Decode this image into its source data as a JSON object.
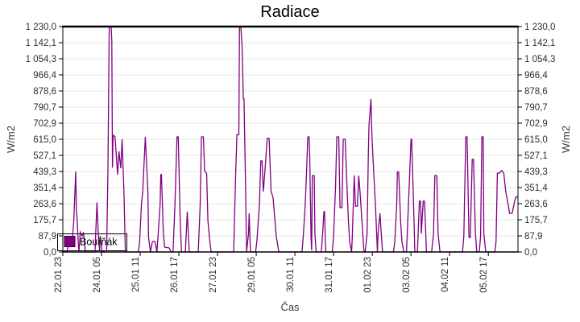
{
  "chart_data": {
    "type": "line",
    "title": "Radiace",
    "xlabel": "Čas",
    "ylabel": "W/m2",
    "ylim": [
      0,
      1230
    ],
    "x_total_hours": 353,
    "grid": "horizontal",
    "grid_color": "#e7e7e7",
    "axis_color": "#000000",
    "background": "#ffffff",
    "yticks": {
      "values": [
        0,
        87.9,
        175.7,
        263.6,
        351.4,
        439.3,
        527.1,
        615.0,
        702.9,
        790.7,
        878.6,
        966.4,
        1054.3,
        1142.1,
        1230.0
      ],
      "labels": [
        "0,0",
        "87,9",
        "175,7",
        "263,6",
        "351,4",
        "439,3",
        "527,1",
        "615,0",
        "702,9",
        "790,7",
        "878,6",
        "966,4",
        "1 054,3",
        "1 142,1",
        "1 230,0"
      ]
    },
    "xticks": {
      "hours": [
        0,
        30,
        60,
        90,
        120,
        150,
        180,
        210,
        240,
        270,
        300,
        330
      ],
      "labels": [
        "22.01 23",
        "24.01 05",
        "25.01 11",
        "26.01 17",
        "27.01 23",
        "29.01 05",
        "30.01 11",
        "31.01 17",
        "01.02 23",
        "03.02 05",
        "04.02 11",
        "05.02 17"
      ]
    },
    "legend": {
      "label": "Bouřňák",
      "marker_color": "#800080",
      "position": "bottom-left"
    },
    "series": [
      {
        "name": "Bouřňák",
        "color": "#800080",
        "points": [
          [
            0,
            5
          ],
          [
            3.5,
            5
          ],
          [
            4.5,
            79
          ],
          [
            5.5,
            44
          ],
          [
            6,
            40
          ],
          [
            7.5,
            79
          ],
          [
            8.5,
            170
          ],
          [
            10,
            439
          ],
          [
            10.5,
            230
          ],
          [
            11,
            189
          ],
          [
            12,
            44
          ],
          [
            12.5,
            0
          ],
          [
            13.5,
            108
          ],
          [
            15,
            87
          ],
          [
            16,
            108
          ],
          [
            17.5,
            0
          ],
          [
            25,
            0
          ],
          [
            25.5,
            100
          ],
          [
            26.5,
            270
          ],
          [
            27.5,
            100
          ],
          [
            28.5,
            9
          ],
          [
            29,
            87
          ],
          [
            30.5,
            0
          ],
          [
            34,
            9
          ],
          [
            35,
            444
          ],
          [
            36,
            1230
          ],
          [
            37.5,
            1230
          ],
          [
            38,
            1150
          ],
          [
            38.5,
            460
          ],
          [
            39,
            637
          ],
          [
            40.5,
            628
          ],
          [
            42.5,
            422
          ],
          [
            43.5,
            549
          ],
          [
            45,
            457
          ],
          [
            46,
            615
          ],
          [
            47.5,
            308
          ],
          [
            48.5,
            0
          ],
          [
            58.5,
            0
          ],
          [
            59.5,
            44
          ],
          [
            61,
            260
          ],
          [
            62,
            330
          ],
          [
            64,
            628
          ],
          [
            66,
            330
          ],
          [
            66.5,
            79
          ],
          [
            68,
            0
          ],
          [
            69.5,
            57
          ],
          [
            71.5,
            57
          ],
          [
            73,
            0
          ],
          [
            74,
            100
          ],
          [
            75.5,
            260
          ],
          [
            76,
            422
          ],
          [
            76.5,
            422
          ],
          [
            78,
            100
          ],
          [
            79,
            26
          ],
          [
            82.5,
            22
          ],
          [
            84,
            0
          ],
          [
            85.5,
            0
          ],
          [
            87,
            260
          ],
          [
            88.5,
            628
          ],
          [
            89.5,
            628
          ],
          [
            91,
            170
          ],
          [
            92,
            0
          ],
          [
            95,
            0
          ],
          [
            96.5,
            220
          ],
          [
            98,
            0
          ],
          [
            105,
            0
          ],
          [
            106.5,
            260
          ],
          [
            107.5,
            628
          ],
          [
            109,
            628
          ],
          [
            110,
            440
          ],
          [
            111.5,
            430
          ],
          [
            112.5,
            170
          ],
          [
            114,
            57
          ],
          [
            115,
            0
          ],
          [
            132.5,
            0
          ],
          [
            134,
            420
          ],
          [
            135,
            640
          ],
          [
            136.5,
            640
          ],
          [
            137,
            1230
          ],
          [
            138,
            1230
          ],
          [
            139,
            1124
          ],
          [
            140,
            835
          ],
          [
            140.5,
            835
          ],
          [
            141.5,
            444
          ],
          [
            142.5,
            0
          ],
          [
            144,
            100
          ],
          [
            144.5,
            211
          ],
          [
            145.5,
            0
          ],
          [
            149.5,
            0
          ],
          [
            150.5,
            60
          ],
          [
            152.5,
            260
          ],
          [
            153.5,
            497
          ],
          [
            154.5,
            497
          ],
          [
            155.5,
            330
          ],
          [
            157,
            466
          ],
          [
            158.5,
            620
          ],
          [
            160,
            620
          ],
          [
            161.5,
            330
          ],
          [
            163,
            299
          ],
          [
            165.5,
            87
          ],
          [
            167.5,
            0
          ],
          [
            185.5,
            0
          ],
          [
            186.5,
            87
          ],
          [
            188,
            260
          ],
          [
            189,
            430
          ],
          [
            190,
            628
          ],
          [
            191,
            628
          ],
          [
            191.5,
            520
          ],
          [
            192.5,
            79
          ],
          [
            193,
            9
          ],
          [
            193.5,
            417
          ],
          [
            195,
            417
          ],
          [
            195.5,
            100
          ],
          [
            196.5,
            0
          ],
          [
            200.5,
            0
          ],
          [
            201.5,
            100
          ],
          [
            202.5,
            220
          ],
          [
            203,
            220
          ],
          [
            203.5,
            79
          ],
          [
            204,
            0
          ],
          [
            209,
            0
          ],
          [
            210,
            87
          ],
          [
            211.5,
            350
          ],
          [
            212.5,
            628
          ],
          [
            214,
            628
          ],
          [
            215,
            242
          ],
          [
            216.5,
            242
          ],
          [
            217.5,
            615
          ],
          [
            219,
            615
          ],
          [
            220,
            430
          ],
          [
            221.5,
            170
          ],
          [
            222.5,
            57
          ],
          [
            224,
            0
          ],
          [
            224.5,
            79
          ],
          [
            226,
            417
          ],
          [
            227,
            250
          ],
          [
            228.5,
            250
          ],
          [
            229.5,
            417
          ],
          [
            230.5,
            330
          ],
          [
            232,
            170
          ],
          [
            233.5,
            9
          ],
          [
            234.5,
            0
          ],
          [
            236,
            100
          ],
          [
            237,
            549
          ],
          [
            237.5,
            694
          ],
          [
            239,
            835
          ],
          [
            239.5,
            694
          ],
          [
            240,
            590
          ],
          [
            241.5,
            387
          ],
          [
            242.5,
            255
          ],
          [
            244,
            0
          ],
          [
            244.5,
            100
          ],
          [
            246,
            211
          ],
          [
            247,
            100
          ],
          [
            248,
            0
          ],
          [
            256.5,
            0
          ],
          [
            257.5,
            57
          ],
          [
            259,
            260
          ],
          [
            259.5,
            437
          ],
          [
            260.5,
            437
          ],
          [
            262,
            170
          ],
          [
            263,
            57
          ],
          [
            264.5,
            0
          ],
          [
            266.5,
            0
          ],
          [
            267.5,
            170
          ],
          [
            269,
            430
          ],
          [
            270,
            615
          ],
          [
            270.5,
            615
          ],
          [
            272,
            260
          ],
          [
            273,
            0
          ],
          [
            275,
            0
          ],
          [
            276.5,
            277
          ],
          [
            277.5,
            277
          ],
          [
            278,
            100
          ],
          [
            279.5,
            277
          ],
          [
            280.5,
            277
          ],
          [
            282,
            0
          ],
          [
            286,
            0
          ],
          [
            287.5,
            100
          ],
          [
            288.5,
            417
          ],
          [
            290,
            417
          ],
          [
            291,
            100
          ],
          [
            292.5,
            0
          ],
          [
            310,
            0
          ],
          [
            311,
            87
          ],
          [
            312.5,
            628
          ],
          [
            313.5,
            628
          ],
          [
            315,
            79
          ],
          [
            316,
            79
          ],
          [
            317.5,
            505
          ],
          [
            318.5,
            505
          ],
          [
            320,
            100
          ],
          [
            321,
            0
          ],
          [
            323,
            0
          ],
          [
            324,
            87
          ],
          [
            325,
            628
          ],
          [
            326,
            628
          ],
          [
            326.5,
            100
          ],
          [
            328,
            0
          ],
          [
            335,
            0
          ],
          [
            336,
            57
          ],
          [
            337,
            430
          ],
          [
            338.5,
            430
          ],
          [
            340.5,
            444
          ],
          [
            342,
            430
          ],
          [
            343.5,
            330
          ],
          [
            345.5,
            255
          ],
          [
            346.5,
            211
          ],
          [
            348.5,
            211
          ],
          [
            350.5,
            280
          ],
          [
            351.5,
            300
          ],
          [
            353,
            300
          ]
        ]
      }
    ]
  }
}
